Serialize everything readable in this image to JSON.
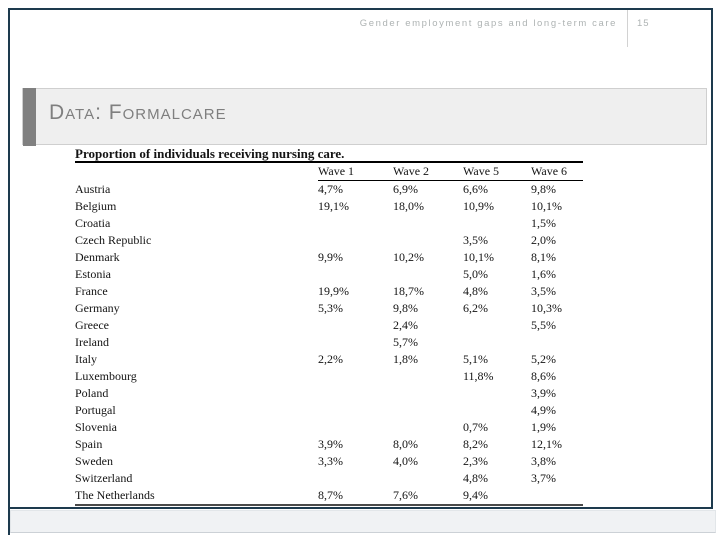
{
  "header": {
    "running_title": "Gender employment gaps and long-term care",
    "page_number": "15"
  },
  "slide": {
    "title": "Data: Formalcare"
  },
  "chart_data": {
    "type": "table",
    "title": "Proportion of individuals receiving nursing care.",
    "columns": [
      "",
      "Wave 1",
      "Wave 2",
      "Wave 5",
      "Wave 6"
    ],
    "rows": [
      [
        "Austria",
        "4,7%",
        "6,9%",
        "6,6%",
        "9,8%"
      ],
      [
        "Belgium",
        "19,1%",
        "18,0%",
        "10,9%",
        "10,1%"
      ],
      [
        "Croatia",
        "",
        "",
        "",
        "1,5%"
      ],
      [
        "Czech Republic",
        "",
        "",
        "3,5%",
        "2,0%"
      ],
      [
        "Denmark",
        "9,9%",
        "10,2%",
        "10,1%",
        "8,1%"
      ],
      [
        "Estonia",
        "",
        "",
        "5,0%",
        "1,6%"
      ],
      [
        "France",
        "19,9%",
        "18,7%",
        "4,8%",
        "3,5%"
      ],
      [
        "Germany",
        "5,3%",
        "9,8%",
        "6,2%",
        "10,3%"
      ],
      [
        "Greece",
        "",
        "2,4%",
        "",
        "5,5%"
      ],
      [
        "Ireland",
        "",
        "5,7%",
        "",
        ""
      ],
      [
        "Italy",
        "2,2%",
        "1,8%",
        "5,1%",
        "5,2%"
      ],
      [
        "Luxembourg",
        "",
        "",
        "11,8%",
        "8,6%"
      ],
      [
        "Poland",
        "",
        "",
        "",
        "3,9%"
      ],
      [
        "Portugal",
        "",
        "",
        "",
        "4,9%"
      ],
      [
        "Slovenia",
        "",
        "",
        "0,7%",
        "1,9%"
      ],
      [
        "Spain",
        "3,9%",
        "8,0%",
        "8,2%",
        "12,1%"
      ],
      [
        "Sweden",
        "3,3%",
        "4,0%",
        "2,3%",
        "3,8%"
      ],
      [
        "Switzerland",
        "",
        "",
        "4,8%",
        "3,7%"
      ],
      [
        "The Netherlands",
        "8,7%",
        "7,6%",
        "9,4%",
        ""
      ]
    ]
  },
  "colors": {
    "frame": "#1d3a4e",
    "footer_bg": "#f0f2f4",
    "title_box_bg": "#efefef",
    "title_accent": "#808080",
    "title_text": "#7f7f7f",
    "header_text": "#aeb3b3",
    "table_text": "#141414"
  }
}
